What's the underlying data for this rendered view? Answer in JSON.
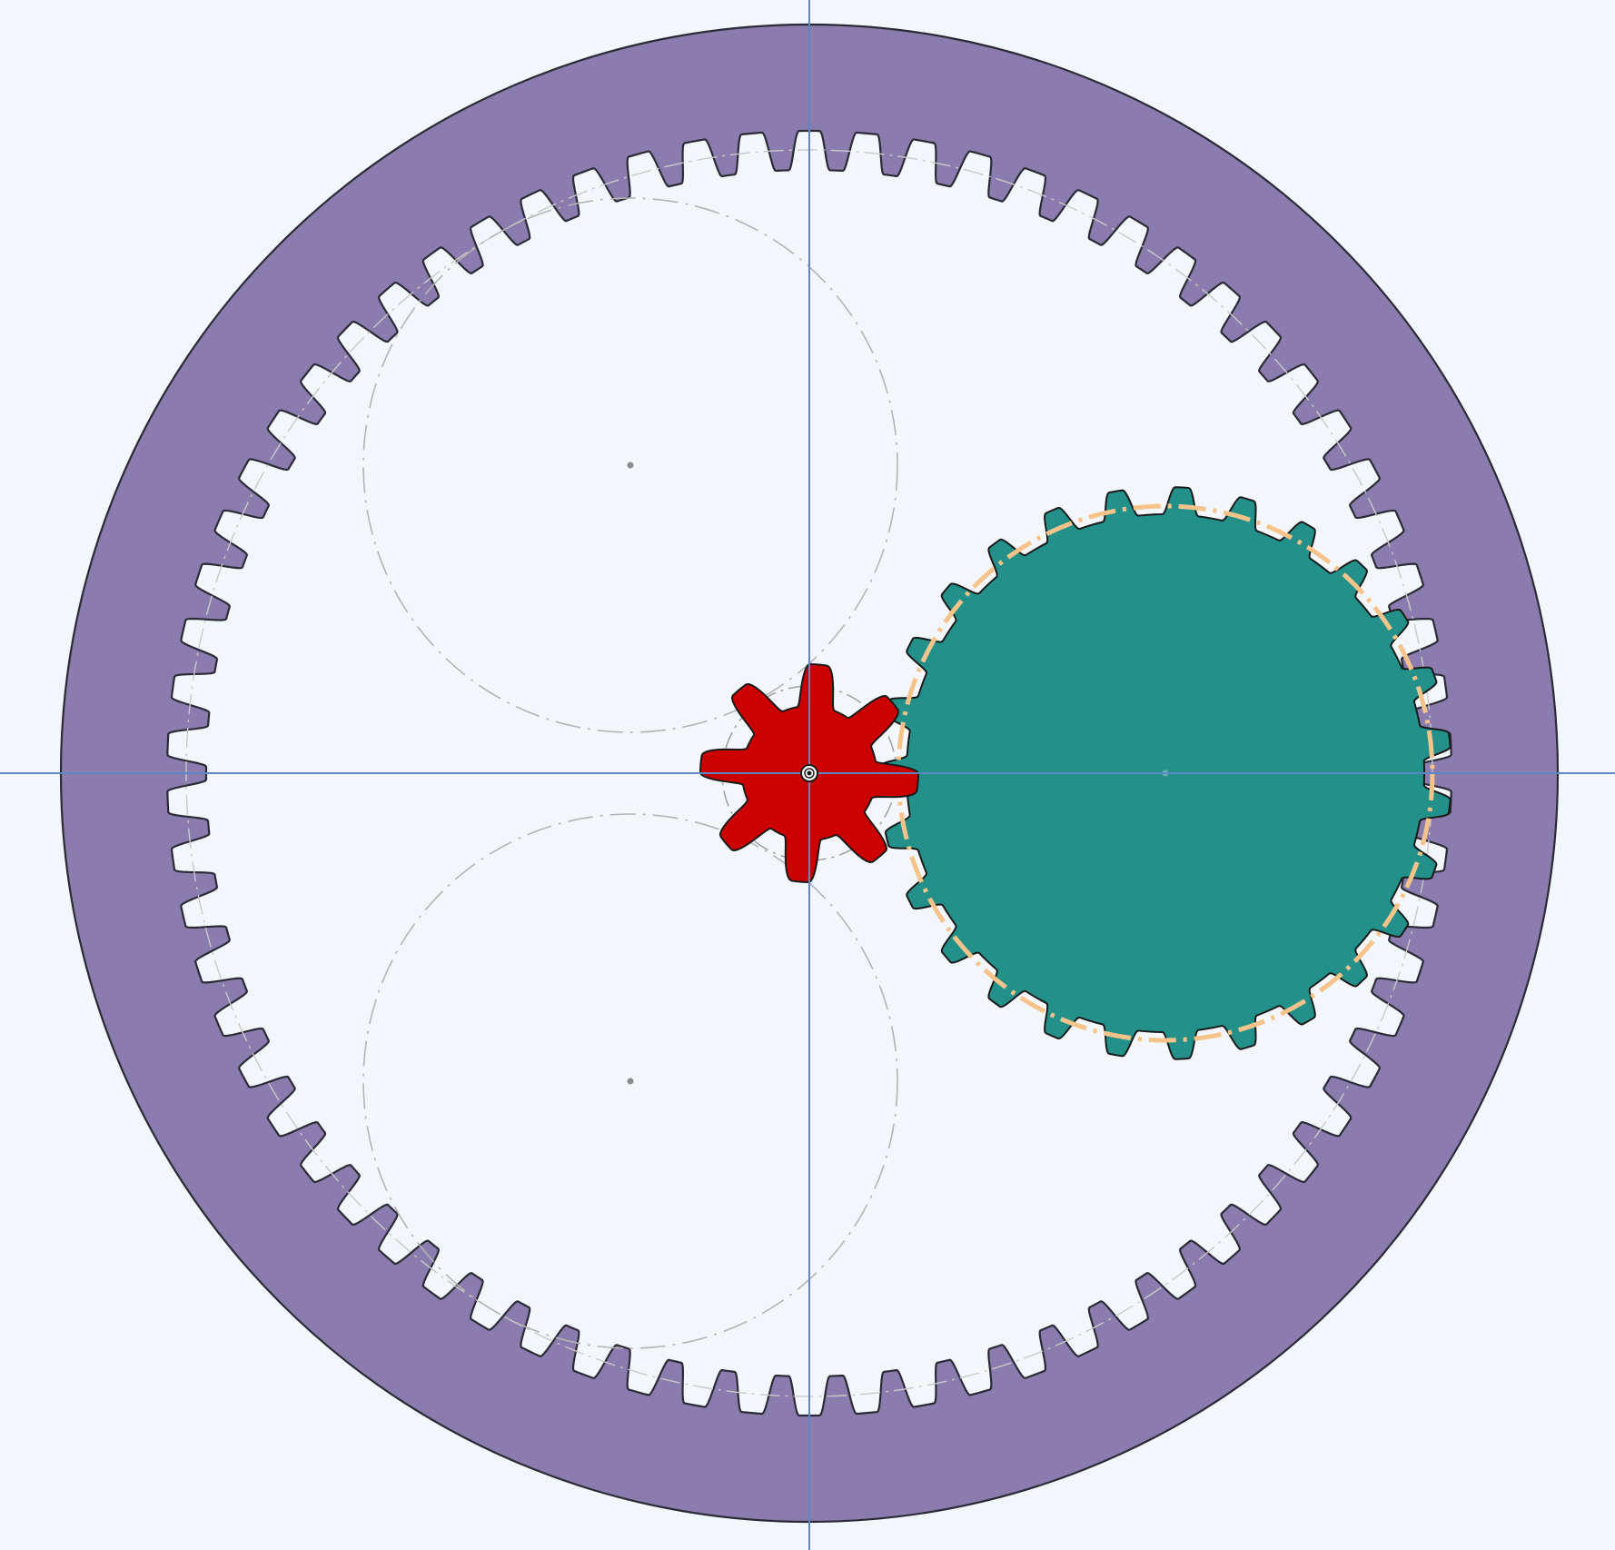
{
  "view": {
    "background": "#f3f7fb",
    "axis_color": "#5b87c5"
  },
  "ring_gear": {
    "teeth": 70,
    "color": "#8a7cae",
    "outline": "#2b2b36",
    "inner_fill": "#f3f7fb"
  },
  "sun_gear": {
    "teeth": 8,
    "color": "#cc0000",
    "outline": "#1a1a1a"
  },
  "planet_gear_active": {
    "teeth": 27,
    "color": "#239189",
    "outline": "#1a1a1a",
    "pitch_circle_color": "#f6c48b"
  },
  "planet_placeholders": {
    "count": 2,
    "line_color": "#b4b4b4",
    "center_dot_color": "#8c8c8c"
  },
  "icons": {
    "center_pin": "center-pin-icon"
  }
}
